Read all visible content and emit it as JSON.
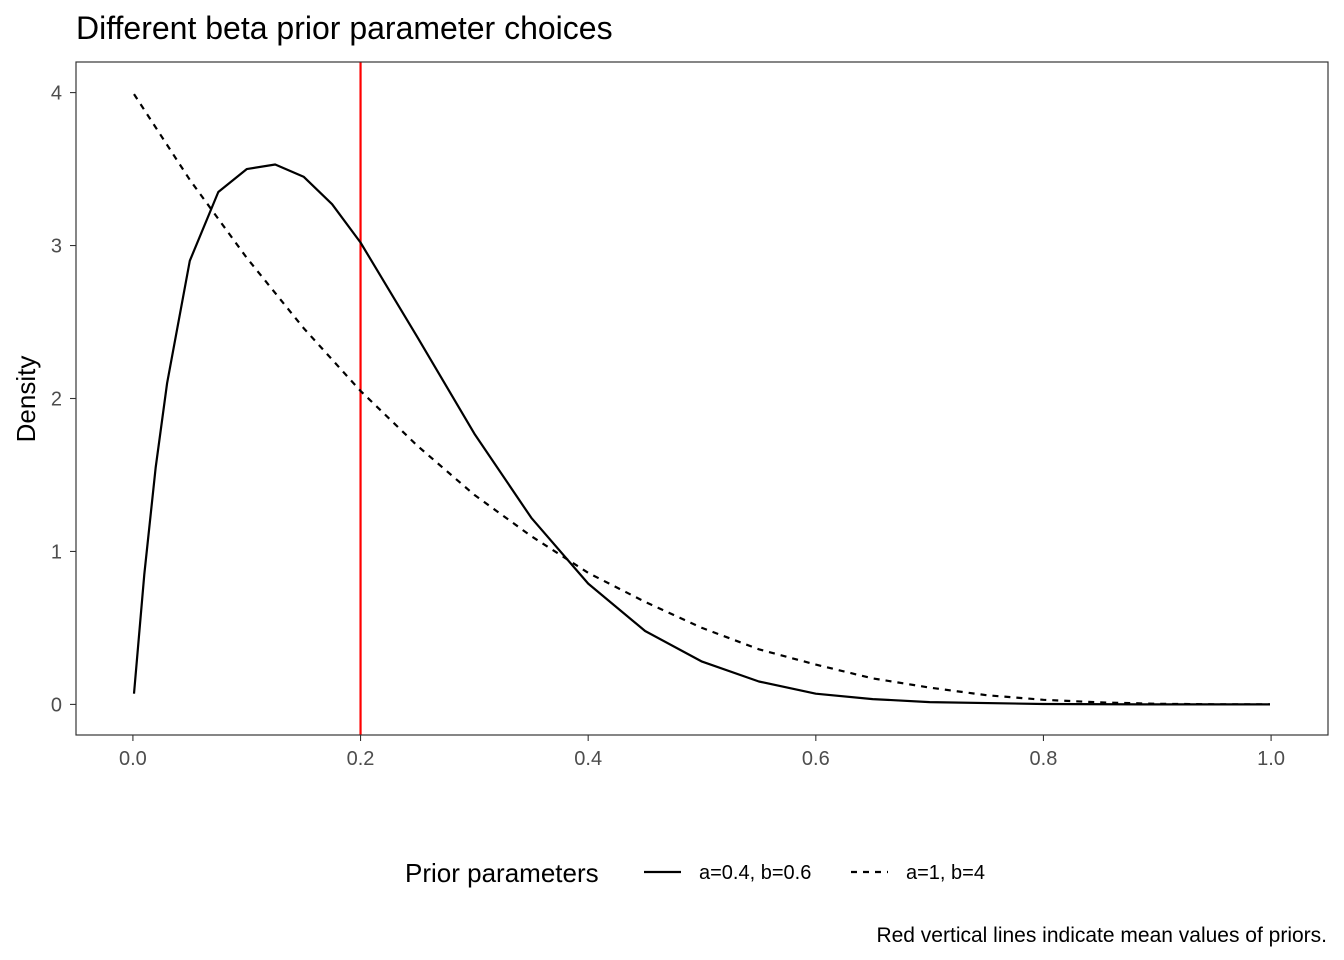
{
  "chart_data": {
    "type": "line",
    "title": "Different beta prior parameter choices",
    "xlabel": "",
    "ylabel": "Density",
    "xlim": [
      -0.05,
      1.05
    ],
    "ylim": [
      -0.2,
      4.2
    ],
    "x_ticks": [
      "0.0",
      "0.2",
      "0.4",
      "0.6",
      "0.8",
      "1.0"
    ],
    "y_ticks": [
      "0",
      "1",
      "2",
      "3",
      "4"
    ],
    "grid": false,
    "legend": {
      "title": "Prior parameters",
      "position": "bottom"
    },
    "series": [
      {
        "name": "a=0.4, b=0.6",
        "line_style": "solid",
        "color": "#000000",
        "x": [
          0.001,
          0.01,
          0.02,
          0.03,
          0.05,
          0.075,
          0.1,
          0.125,
          0.15,
          0.175,
          0.2,
          0.25,
          0.3,
          0.35,
          0.4,
          0.45,
          0.5,
          0.55,
          0.6,
          0.65,
          0.7,
          0.8,
          0.9,
          0.999
        ],
        "y": [
          0.07,
          0.85,
          1.55,
          2.1,
          2.9,
          3.35,
          3.5,
          3.53,
          3.45,
          3.27,
          3.02,
          2.4,
          1.77,
          1.22,
          0.79,
          0.48,
          0.28,
          0.15,
          0.07,
          0.035,
          0.015,
          0.003,
          0.0,
          0.0
        ]
      },
      {
        "name": "a=1, b=4",
        "line_style": "dashed",
        "color": "#000000",
        "x": [
          0.001,
          0.05,
          0.1,
          0.15,
          0.2,
          0.25,
          0.3,
          0.35,
          0.4,
          0.45,
          0.5,
          0.55,
          0.6,
          0.65,
          0.7,
          0.75,
          0.8,
          0.85,
          0.9,
          0.95,
          0.999
        ],
        "y": [
          3.99,
          3.43,
          2.92,
          2.46,
          2.05,
          1.69,
          1.37,
          1.1,
          0.86,
          0.67,
          0.5,
          0.36,
          0.26,
          0.17,
          0.11,
          0.06,
          0.03,
          0.013,
          0.004,
          0.0005,
          0.0
        ]
      }
    ],
    "reference_lines": [
      {
        "axis": "x",
        "value": 0.2,
        "color": "#ff0000"
      }
    ],
    "caption": "Red vertical lines indicate mean values of priors."
  }
}
